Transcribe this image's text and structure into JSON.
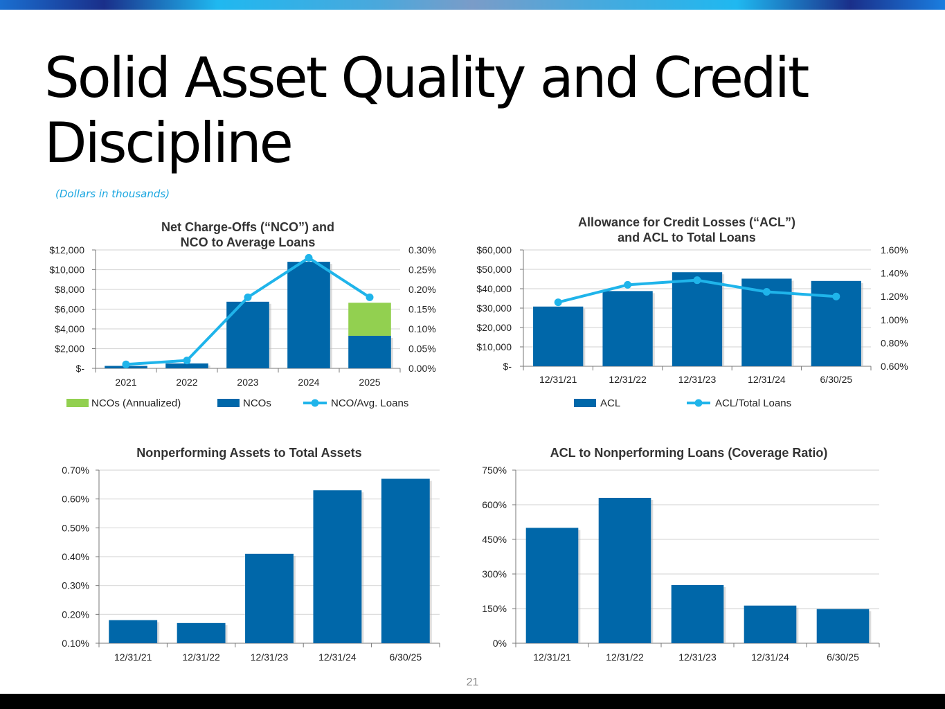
{
  "slide": {
    "title": "Solid Asset Quality and Credit Discipline",
    "subtitle": "(Dollars in thousands)",
    "page_number": "21"
  },
  "colors": {
    "bar": "#0067a9",
    "annualized": "#92d050",
    "line": "#1fb4ea",
    "grid": "#d9d9d9"
  },
  "chart_data": [
    {
      "type": "bar",
      "title": [
        "Net Charge-Offs (“NCO”) and",
        "NCO to Average Loans"
      ],
      "categories": [
        "2021",
        "2022",
        "2023",
        "2024",
        "2025"
      ],
      "ylim": [
        0,
        12000
      ],
      "y2lim": [
        0,
        0.3
      ],
      "y_ticks": [
        "$-",
        "$2,000",
        "$4,000",
        "$6,000",
        "$8,000",
        "$10,000",
        "$12,000"
      ],
      "y2_ticks": [
        "0.00%",
        "0.05%",
        "0.10%",
        "0.15%",
        "0.20%",
        "0.25%",
        "0.30%"
      ],
      "series": [
        {
          "name": "NCOs",
          "kind": "bar",
          "values": [
            250,
            500,
            6750,
            10800,
            3300
          ]
        },
        {
          "name": "NCOs (Annualized)",
          "kind": "stack",
          "values": [
            0,
            0,
            0,
            0,
            3350
          ]
        },
        {
          "name": "NCO/Avg. Loans",
          "kind": "line",
          "axis": "right",
          "values": [
            0.01,
            0.02,
            0.18,
            0.28,
            0.18
          ]
        }
      ],
      "legend": [
        "NCOs (Annualized)",
        "NCOs",
        "NCO/Avg. Loans"
      ]
    },
    {
      "type": "bar",
      "title": [
        "Allowance for Credit Losses (“ACL”)",
        "and ACL to Total Loans"
      ],
      "categories": [
        "12/31/21",
        "12/31/22",
        "12/31/23",
        "12/31/24",
        "6/30/25"
      ],
      "ylim": [
        0,
        60000
      ],
      "y2lim": [
        0.6,
        1.6
      ],
      "y_ticks": [
        "$-",
        "$10,000",
        "$20,000",
        "$30,000",
        "$40,000",
        "$50,000",
        "$60,000"
      ],
      "y2_ticks": [
        "0.60%",
        "0.80%",
        "1.00%",
        "1.20%",
        "1.40%",
        "1.60%"
      ],
      "series": [
        {
          "name": "ACL",
          "kind": "bar",
          "values": [
            30800,
            38800,
            48500,
            45200,
            44000
          ]
        },
        {
          "name": "ACL/Total Loans",
          "kind": "line",
          "axis": "right",
          "values": [
            1.15,
            1.3,
            1.34,
            1.24,
            1.2
          ]
        }
      ],
      "legend": [
        "ACL",
        "ACL/Total Loans"
      ]
    },
    {
      "type": "bar",
      "title": [
        "Nonperforming Assets to Total Assets"
      ],
      "categories": [
        "12/31/21",
        "12/31/22",
        "12/31/23",
        "12/31/24",
        "6/30/25"
      ],
      "ylim": [
        0.1,
        0.7
      ],
      "y_ticks": [
        "0.10%",
        "0.20%",
        "0.30%",
        "0.40%",
        "0.50%",
        "0.60%",
        "0.70%"
      ],
      "series": [
        {
          "name": "NPA/Total Assets",
          "kind": "bar",
          "values": [
            0.18,
            0.17,
            0.41,
            0.63,
            0.67
          ]
        }
      ]
    },
    {
      "type": "bar",
      "title": [
        "ACL to Nonperforming Loans (Coverage Ratio)"
      ],
      "categories": [
        "12/31/21",
        "12/31/22",
        "12/31/23",
        "12/31/24",
        "6/30/25"
      ],
      "ylim": [
        0,
        750
      ],
      "y_ticks": [
        "0%",
        "150%",
        "300%",
        "450%",
        "600%",
        "750%"
      ],
      "series": [
        {
          "name": "Coverage Ratio",
          "kind": "bar",
          "values": [
            500,
            630,
            252,
            163,
            148
          ]
        }
      ]
    }
  ]
}
